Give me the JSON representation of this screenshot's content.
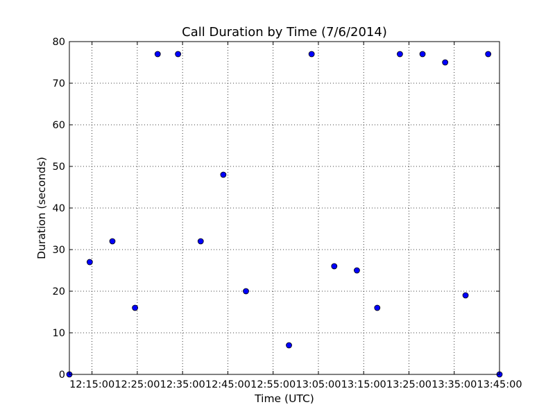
{
  "chart_data": {
    "type": "scatter",
    "title": "Call Duration by Time (7/6/2014)",
    "xlabel": "Time (UTC)",
    "ylabel": "Duration (seconds)",
    "xlim": [
      "12:10:00",
      "13:45:00"
    ],
    "ylim": [
      0,
      80
    ],
    "x_ticks": [
      "12:15:00",
      "12:25:00",
      "12:35:00",
      "12:45:00",
      "12:55:00",
      "13:05:00",
      "13:15:00",
      "13:25:00",
      "13:35:00",
      "13:45:00"
    ],
    "y_ticks": [
      0,
      10,
      20,
      30,
      40,
      50,
      60,
      70,
      80
    ],
    "grid": true,
    "marker_color": "#0000ff",
    "points": [
      {
        "x": "12:10:00",
        "y": 0
      },
      {
        "x": "12:14:30",
        "y": 27
      },
      {
        "x": "12:19:30",
        "y": 32
      },
      {
        "x": "12:24:30",
        "y": 16
      },
      {
        "x": "12:29:30",
        "y": 77
      },
      {
        "x": "12:34:00",
        "y": 77
      },
      {
        "x": "12:39:00",
        "y": 32
      },
      {
        "x": "12:44:00",
        "y": 48
      },
      {
        "x": "12:49:00",
        "y": 20
      },
      {
        "x": "12:58:30",
        "y": 7
      },
      {
        "x": "13:03:30",
        "y": 77
      },
      {
        "x": "13:08:30",
        "y": 26
      },
      {
        "x": "13:13:30",
        "y": 25
      },
      {
        "x": "13:18:00",
        "y": 16
      },
      {
        "x": "13:23:00",
        "y": 77
      },
      {
        "x": "13:28:00",
        "y": 77
      },
      {
        "x": "13:33:00",
        "y": 75
      },
      {
        "x": "13:37:30",
        "y": 19
      },
      {
        "x": "13:42:30",
        "y": 77
      },
      {
        "x": "13:45:00",
        "y": 0
      }
    ]
  }
}
